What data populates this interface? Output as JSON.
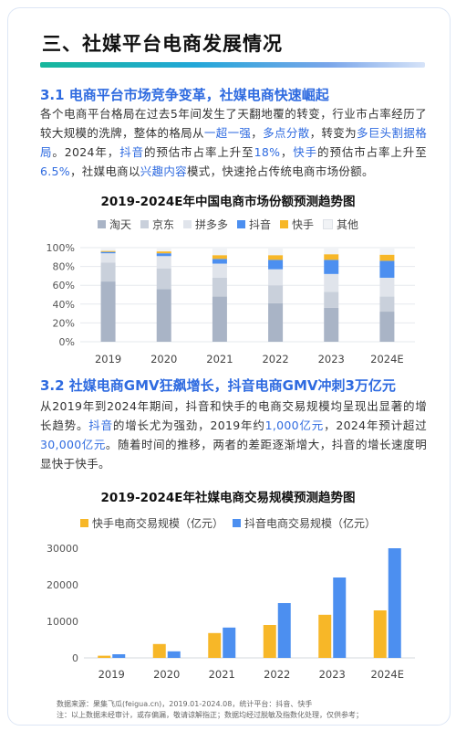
{
  "section": {
    "title": "三、社媒平台电商发展情况"
  },
  "sub1": {
    "title": "3.1 电商平台市场竞争变革，社媒电商快速崛起",
    "paragraph": [
      {
        "t": "各个电商平台格局在过去5年间发生了天翻地覆的转变，行业市占率经历了较大规模的洗牌，整体的格局从",
        "hl": false
      },
      {
        "t": "一超一强",
        "hl": true
      },
      {
        "t": "，",
        "hl": false
      },
      {
        "t": "多点分散",
        "hl": true
      },
      {
        "t": "，转变为",
        "hl": false
      },
      {
        "t": "多巨头割据格局",
        "hl": true
      },
      {
        "t": "。2024年，",
        "hl": false
      },
      {
        "t": "抖音",
        "hl": true
      },
      {
        "t": "的预估市占率上升至",
        "hl": false
      },
      {
        "t": "18%",
        "hl": true
      },
      {
        "t": "，",
        "hl": false
      },
      {
        "t": "快手",
        "hl": true
      },
      {
        "t": "的预估市占率上升至",
        "hl": false
      },
      {
        "t": "6.5%",
        "hl": true
      },
      {
        "t": "，社媒电商以",
        "hl": false
      },
      {
        "t": "兴趣内容",
        "hl": true
      },
      {
        "t": "模式，快速抢占传统电商市场份额。",
        "hl": false
      }
    ]
  },
  "sub2": {
    "title": "3.2 社媒电商GMV狂飙增长，抖音电商GMV冲刺3万亿元",
    "paragraph": [
      {
        "t": "从2019年到2024年期间，抖音和快手的电商交易规模均呈现出显著的增长趋势。",
        "hl": false
      },
      {
        "t": "抖音",
        "hl": true
      },
      {
        "t": "的增长尤为强劲，2019年约",
        "hl": false
      },
      {
        "t": "1,000亿元",
        "hl": true
      },
      {
        "t": "，2024年预计超过",
        "hl": false
      },
      {
        "t": "30,000亿元",
        "hl": true
      },
      {
        "t": "。随着时间的推移，两者的差距逐渐增大，抖音的增长速度明显快于快手。",
        "hl": false
      }
    ]
  },
  "colors": {
    "accent_blue": "#2f6be0",
    "taotian": "#a9b4c6",
    "jingdong": "#c9d0db",
    "pdd": "#e0e4eb",
    "douyin": "#4c8ff0",
    "kuaishou": "#f7b728",
    "other": "#f1f3f6"
  },
  "chart_data": [
    {
      "type": "bar",
      "stacked": true,
      "title": "2019-2024E年中国电商市场份额预测趋势图",
      "categories": [
        "2019",
        "2020",
        "2021",
        "2022",
        "2023",
        "2024E"
      ],
      "ylim": [
        0,
        100
      ],
      "yticks": [
        "0%",
        "20%",
        "40%",
        "60%",
        "80%",
        "100%"
      ],
      "grid": true,
      "legend_position": "top",
      "series": [
        {
          "name": "淘天",
          "color": "#a9b4c6",
          "values": [
            64,
            56,
            48,
            41,
            36,
            32
          ]
        },
        {
          "name": "京东",
          "color": "#c9d0db",
          "values": [
            20,
            22,
            20,
            19,
            17,
            16
          ]
        },
        {
          "name": "拼多多",
          "color": "#e0e4eb",
          "values": [
            10,
            13,
            15,
            17,
            19,
            20
          ]
        },
        {
          "name": "抖音",
          "color": "#4c8ff0",
          "values": [
            1.5,
            3,
            5,
            10,
            15,
            18
          ]
        },
        {
          "name": "快手",
          "color": "#f7b728",
          "values": [
            1,
            2,
            4,
            5,
            6,
            6.5
          ]
        },
        {
          "name": "其他",
          "color": "#f1f3f6",
          "values": [
            3.5,
            4,
            8,
            8,
            7,
            7.5
          ]
        }
      ]
    },
    {
      "type": "bar",
      "stacked": false,
      "title": "2019-2024E年社媒电商交易规模预测趋势图",
      "categories": [
        "2019",
        "2020",
        "2021",
        "2022",
        "2023",
        "2024E"
      ],
      "ylim": [
        0,
        30000
      ],
      "yticks": [
        "0",
        "10000",
        "20000",
        "30000"
      ],
      "grid": false,
      "legend_position": "top",
      "series": [
        {
          "name": "快手电商交易规模（亿元）",
          "color": "#f7b728",
          "values": [
            600,
            3800,
            6800,
            9000,
            11800,
            13000
          ]
        },
        {
          "name": "抖音电商交易规模（亿元）",
          "color": "#4c8ff0",
          "values": [
            1000,
            1800,
            8300,
            15000,
            22000,
            30000
          ]
        }
      ]
    }
  ],
  "footnote": {
    "line1": "数据来源：果集飞瓜(feigua.cn)，2019.01-2024.08，统计平台：抖音、快手",
    "line2": "注：以上数据未经审计，或存偏漏，敬请谅解指正；数据均经过脱敏及指数化处理，仅供参考；"
  }
}
